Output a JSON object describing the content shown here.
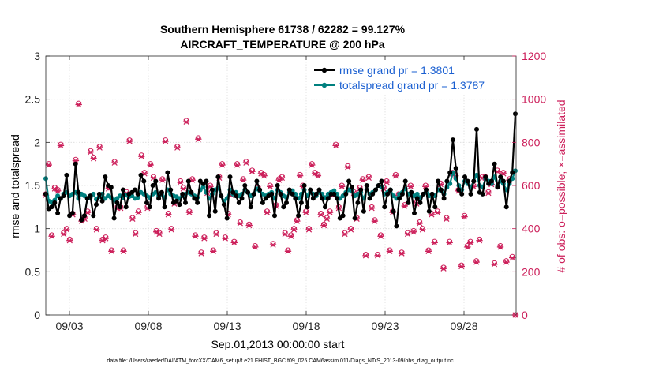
{
  "chart_data": {
    "type": "line",
    "title": "Southern Hemisphere 61738 / 62282 = 99.127%",
    "subtitle": "AIRCRAFT_TEMPERATURE @ 200 hPa",
    "xlabel": "Sep.01,2013 00:00:00 start",
    "ylabel": "rmse and totalspread",
    "y2label": "# of obs: o=possible; ×=assimilated",
    "footer": "data file: /Users/raeder/DAI/ATM_forcXX/CAM6_setup/f.e21.FHIST_BGC.f09_025.CAM6assim.011/Diags_NTrS_2013-09/obs_diag_output.nc",
    "xlim": [
      1.5,
      31.3
    ],
    "ylim": [
      0,
      3
    ],
    "y2lim": [
      0,
      1200
    ],
    "x_tick_values": [
      3,
      8,
      13,
      18,
      23,
      28
    ],
    "x_tick_labels": [
      "09/03",
      "09/08",
      "09/13",
      "09/18",
      "09/23",
      "09/28"
    ],
    "y_ticks": [
      0,
      0.5,
      1,
      1.5,
      2,
      2.5,
      3
    ],
    "y2_ticks": [
      0,
      200,
      400,
      600,
      800,
      1000,
      1200
    ],
    "grid": true,
    "legend_position": "top-right",
    "series": [
      {
        "name": "rmse grand pr = 1.3801",
        "color": "#000000",
        "axis": "left",
        "values": [
          1.4,
          1.23,
          1.25,
          1.3,
          1.18,
          1.35,
          1.38,
          1.62,
          1.15,
          1.18,
          1.75,
          1.42,
          1.1,
          1.15,
          1.35,
          1.38,
          1.15,
          1.28,
          1.4,
          1.32,
          1.6,
          1.5,
          1.48,
          1.12,
          1.3,
          1.25,
          1.45,
          1.25,
          1.4,
          1.42,
          1.45,
          1.4,
          1.62,
          1.55,
          1.3,
          1.25,
          1.5,
          1.55,
          1.35,
          1.42,
          1.25,
          1.65,
          1.45,
          1.3,
          1.32,
          1.28,
          1.4,
          1.3,
          1.55,
          1.42,
          1.35,
          1.3,
          1.55,
          1.52,
          1.55,
          1.15,
          1.45,
          1.2,
          1.6,
          1.38,
          1.28,
          1.12,
          1.6,
          1.42,
          1.38,
          1.3,
          1.35,
          1.5,
          1.42,
          1.25,
          1.4,
          1.55,
          1.45,
          1.3,
          1.35,
          1.38,
          1.4,
          1.15,
          1.5,
          1.4,
          1.25,
          1.3,
          1.45,
          1.4,
          1.35,
          1.15,
          1.3,
          1.5,
          1.25,
          1.45,
          1.35,
          1.4,
          1.45,
          1.35,
          1.25,
          1.35,
          1.4,
          1.4,
          1.35,
          1.12,
          1.15,
          1.4,
          1.55,
          1.48,
          1.12,
          1.3,
          1.45,
          1.2,
          1.5,
          1.35,
          1.4,
          1.45,
          1.5,
          1.55,
          1.25,
          1.4,
          1.45,
          1.2,
          1.03,
          1.35,
          1.4,
          1.55,
          1.3,
          1.42,
          1.18,
          1.35,
          1.3,
          1.4,
          1.45,
          1.2,
          1.4,
          1.25,
          1.55,
          1.45,
          1.35,
          1.55,
          1.65,
          2.03,
          1.7,
          1.45,
          1.4,
          1.6,
          1.55,
          1.4,
          1.55,
          2.15,
          1.42,
          1.4,
          1.6,
          1.52,
          1.55,
          1.75,
          1.48,
          1.6,
          1.55,
          1.25,
          1.55,
          1.65,
          2.33
        ]
      },
      {
        "name": "totalspread grand pr = 1.3787",
        "color": "#00807f",
        "axis": "left",
        "values": [
          1.58,
          1.32,
          1.3,
          1.33,
          1.38,
          1.35,
          1.4,
          1.42,
          1.38,
          1.4,
          1.42,
          1.35,
          1.4,
          1.38,
          1.35,
          1.36,
          1.4,
          1.34,
          1.37,
          1.4,
          1.35,
          1.38,
          1.36,
          1.33,
          1.35,
          1.38,
          1.36,
          1.39,
          1.37,
          1.38,
          1.35,
          1.36,
          1.42,
          1.4,
          1.38,
          1.36,
          1.4,
          1.42,
          1.38,
          1.4,
          1.36,
          1.45,
          1.4,
          1.38,
          1.37,
          1.35,
          1.38,
          1.4,
          1.42,
          1.4,
          1.38,
          1.36,
          1.45,
          1.48,
          1.42,
          1.35,
          1.4,
          1.45,
          1.47,
          1.38,
          1.32,
          1.35,
          1.45,
          1.4,
          1.42,
          1.38,
          1.4,
          1.45,
          1.42,
          1.38,
          1.4,
          1.46,
          1.44,
          1.4,
          1.38,
          1.4,
          1.42,
          1.35,
          1.45,
          1.42,
          1.38,
          1.36,
          1.42,
          1.44,
          1.4,
          1.35,
          1.4,
          1.45,
          1.38,
          1.42,
          1.4,
          1.38,
          1.42,
          1.4,
          1.36,
          1.4,
          1.42,
          1.44,
          1.4,
          1.35,
          1.38,
          1.42,
          1.45,
          1.44,
          1.38,
          1.4,
          1.42,
          1.35,
          1.45,
          1.4,
          1.42,
          1.45,
          1.5,
          1.48,
          1.4,
          1.42,
          1.45,
          1.38,
          1.35,
          1.4,
          1.42,
          1.46,
          1.4,
          1.42,
          1.38,
          1.4,
          1.36,
          1.4,
          1.42,
          1.38,
          1.4,
          1.38,
          1.45,
          1.44,
          1.4,
          1.48,
          1.52,
          1.65,
          1.58,
          1.5,
          1.45,
          1.55,
          1.52,
          1.48,
          1.55,
          1.62,
          1.5,
          1.48,
          1.58,
          1.55,
          1.52,
          1.6,
          1.5,
          1.55,
          1.52,
          1.45,
          1.52,
          1.58,
          1.67
        ]
      },
      {
        "name": "obs possible",
        "color": "#cc1f5a",
        "axis": "right",
        "marker": "o",
        "values": [
          560,
          700,
          370,
          590,
          580,
          790,
          380,
          400,
          350,
          470,
          720,
          980,
          440,
          450,
          480,
          760,
          730,
          400,
          780,
          350,
          360,
          590,
          300,
          710,
          500,
          500,
          300,
          570,
          810,
          450,
          380,
          480,
          740,
          660,
          500,
          700,
          640,
          390,
          380,
          630,
          810,
          470,
          400,
          520,
          780,
          620,
          590,
          900,
          480,
          630,
          370,
          820,
          290,
          360,
          570,
          600,
          300,
          380,
          640,
          700,
          360,
          470,
          560,
          340,
          700,
          430,
          630,
          710,
          420,
          670,
          320,
          590,
          660,
          650,
          480,
          600,
          330,
          510,
          630,
          640,
          380,
          300,
          370,
          400,
          440,
          650,
          600,
          480,
          400,
          700,
          660,
          650,
          470,
          420,
          450,
          480,
          560,
          790,
          500,
          600,
          380,
          690,
          400,
          570,
          450,
          590,
          630,
          280,
          640,
          500,
          440,
          280,
          370,
          590,
          620,
          300,
          480,
          650,
          560,
          290,
          510,
          380,
          600,
          390,
          520,
          430,
          400,
          600,
          300,
          470,
          340,
          480,
          610,
          220,
          450,
          340,
          660,
          650,
          580,
          230,
          460,
          320,
          340,
          600,
          250,
          350,
          640,
          640,
          570,
          610,
          240,
          670,
          320,
          660,
          250,
          630,
          270,
          0
        ]
      },
      {
        "name": "obs assimilated",
        "color": "#cc1f5a",
        "axis": "right",
        "marker": "x",
        "values": [
          555,
          695,
          365,
          585,
          575,
          785,
          375,
          395,
          345,
          465,
          715,
          975,
          435,
          445,
          475,
          755,
          725,
          395,
          775,
          345,
          355,
          585,
          295,
          705,
          495,
          495,
          295,
          565,
          805,
          445,
          375,
          475,
          735,
          655,
          495,
          695,
          635,
          385,
          375,
          625,
          805,
          465,
          395,
          515,
          775,
          615,
          585,
          895,
          475,
          625,
          365,
          815,
          285,
          355,
          565,
          595,
          295,
          375,
          635,
          695,
          355,
          465,
          555,
          335,
          695,
          425,
          625,
          705,
          415,
          665,
          315,
          585,
          655,
          645,
          475,
          595,
          325,
          505,
          625,
          635,
          375,
          295,
          365,
          395,
          435,
          645,
          595,
          475,
          395,
          695,
          655,
          645,
          465,
          415,
          445,
          475,
          555,
          785,
          495,
          595,
          375,
          685,
          395,
          565,
          445,
          585,
          625,
          275,
          635,
          495,
          435,
          275,
          365,
          585,
          615,
          295,
          475,
          645,
          555,
          285,
          505,
          375,
          595,
          385,
          515,
          425,
          395,
          595,
          295,
          465,
          335,
          475,
          605,
          215,
          445,
          335,
          655,
          645,
          575,
          225,
          455,
          315,
          335,
          595,
          245,
          345,
          635,
          635,
          565,
          605,
          235,
          665,
          315,
          655,
          245,
          625,
          265,
          0
        ]
      }
    ]
  }
}
